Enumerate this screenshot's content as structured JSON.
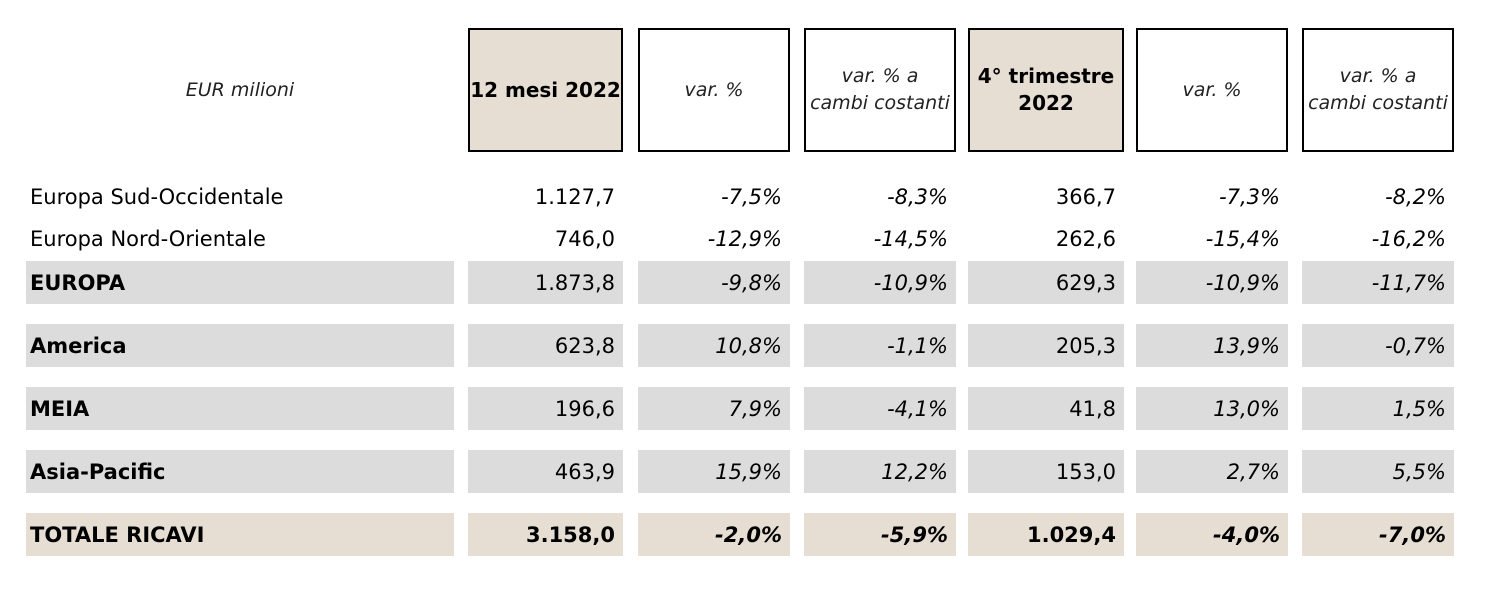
{
  "header": {
    "unit_label": "EUR milioni",
    "col1": "12 mesi 2022",
    "col2": "var. %",
    "col3_line1": "var. % a",
    "col3_line2": "cambi costanti",
    "col4_line1": "4° trimestre",
    "col4_line2": "2022",
    "col5": "var. %",
    "col6_line1": "var. % a",
    "col6_line2": "cambi costanti"
  },
  "rows": [
    {
      "label": "Europa Sud-Occidentale",
      "v1": "1.127,7",
      "v2": "-7,5%",
      "v3": "-8,3%",
      "v4": "366,7",
      "v5": "-7,3%",
      "v6": "-8,2%"
    },
    {
      "label": "Europa Nord-Orientale",
      "v1": "746,0",
      "v2": "-12,9%",
      "v3": "-14,5%",
      "v4": "262,6",
      "v5": "-15,4%",
      "v6": "-16,2%"
    },
    {
      "label": "EUROPA",
      "v1": "1.873,8",
      "v2": "-9,8%",
      "v3": "-10,9%",
      "v4": "629,3",
      "v5": "-10,9%",
      "v6": "-11,7%"
    },
    {
      "label": "America",
      "v1": "623,8",
      "v2": "10,8%",
      "v3": "-1,1%",
      "v4": "205,3",
      "v5": "13,9%",
      "v6": "-0,7%"
    },
    {
      "label": "MEIA",
      "v1": "196,6",
      "v2": "7,9%",
      "v3": "-4,1%",
      "v4": "41,8",
      "v5": "13,0%",
      "v6": "1,5%"
    },
    {
      "label": "Asia-Pacific",
      "v1": "463,9",
      "v2": "15,9%",
      "v3": "12,2%",
      "v4": "153,0",
      "v5": "2,7%",
      "v6": "5,5%"
    },
    {
      "label": "TOTALE RICAVI",
      "v1": "3.158,0",
      "v2": "-2,0%",
      "v3": "-5,9%",
      "v4": "1.029,4",
      "v5": "-4,0%",
      "v6": "-7,0%"
    }
  ]
}
